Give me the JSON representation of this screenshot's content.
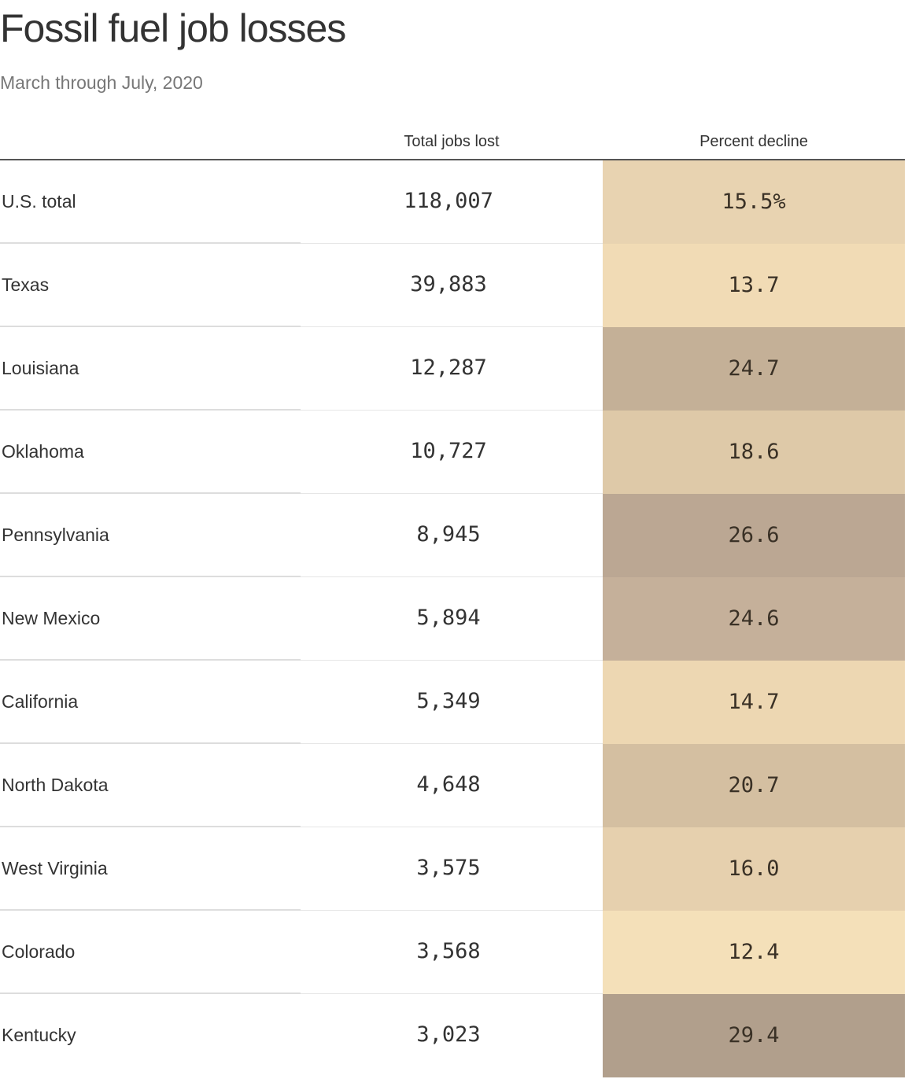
{
  "title": "Fossil fuel job losses",
  "subtitle": "March through July, 2020",
  "chart_data": {
    "type": "table",
    "title": "Fossil fuel job losses",
    "subtitle": "March through July, 2020",
    "columns": [
      "",
      "Total jobs lost",
      "Percent decline"
    ],
    "rows": [
      {
        "state": "U.S. total",
        "jobs_lost": "118,007",
        "jobs_value": 118007,
        "pct_decline": "15.5%",
        "pct_value": 15.5,
        "color": "#e8d3b1"
      },
      {
        "state": "Texas",
        "jobs_lost": "39,883",
        "jobs_value": 39883,
        "pct_decline": "13.7",
        "pct_value": 13.7,
        "color": "#f1dbb5"
      },
      {
        "state": "Louisiana",
        "jobs_lost": "12,287",
        "jobs_value": 12287,
        "pct_decline": "24.7",
        "pct_value": 24.7,
        "color": "#c4b097"
      },
      {
        "state": "Oklahoma",
        "jobs_lost": "10,727",
        "jobs_value": 10727,
        "pct_decline": "18.6",
        "pct_value": 18.6,
        "color": "#dec9a8"
      },
      {
        "state": "Pennsylvania",
        "jobs_lost": "8,945",
        "jobs_value": 8945,
        "pct_decline": "26.6",
        "pct_value": 26.6,
        "color": "#bba793"
      },
      {
        "state": "New Mexico",
        "jobs_lost": "5,894",
        "jobs_value": 5894,
        "pct_decline": "24.6",
        "pct_value": 24.6,
        "color": "#c5b09a"
      },
      {
        "state": "California",
        "jobs_lost": "5,349",
        "jobs_value": 5349,
        "pct_decline": "14.7",
        "pct_value": 14.7,
        "color": "#edd7b2"
      },
      {
        "state": "North Dakota",
        "jobs_lost": "4,648",
        "jobs_value": 4648,
        "pct_decline": "20.7",
        "pct_value": 20.7,
        "color": "#d4bfa1"
      },
      {
        "state": "West Virginia",
        "jobs_lost": "3,575",
        "jobs_value": 3575,
        "pct_decline": "16.0",
        "pct_value": 16.0,
        "color": "#e6d0ae"
      },
      {
        "state": "Colorado",
        "jobs_lost": "3,568",
        "jobs_value": 3568,
        "pct_decline": "12.4",
        "pct_value": 12.4,
        "color": "#f4e0b9"
      },
      {
        "state": "Kentucky",
        "jobs_lost": "3,023",
        "jobs_value": 3023,
        "pct_decline": "29.4",
        "pct_value": 29.4,
        "color": "#b19f8c"
      }
    ]
  }
}
